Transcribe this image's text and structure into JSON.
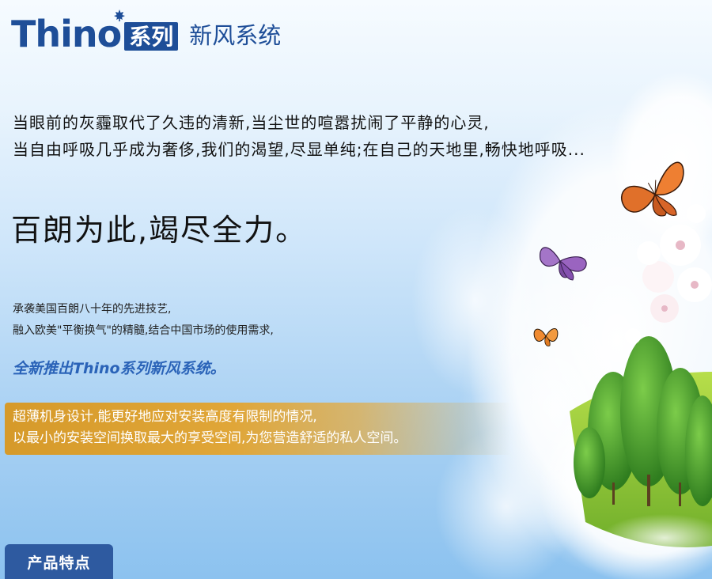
{
  "brand": {
    "name": "Thino",
    "badge": "系列",
    "subtitle": "新风系统"
  },
  "intro": {
    "line1": "当眼前的灰霾取代了久违的清新,当尘世的喧嚣扰闹了平静的心灵,",
    "line2": "当自由呼吸几乎成为奢侈,我们的渴望,尽显单纯;在自己的天地里,畅快地呼吸..."
  },
  "slogan": "百朗为此,竭尽全力。",
  "description": {
    "line1": "承袭美国百朗八十年的先进技艺,",
    "line2": "融入欧美\"平衡换气\"的精髓,结合中国市场的使用需求,"
  },
  "launch": "全新推出Thino系列新风系统。",
  "feature": {
    "line1": "超薄机身设计,能更好地应对安装高度有限制的情况,",
    "line2": "以最小的安装空间换取最大的享受空间,为您营造舒适的私人空间。"
  },
  "tab": {
    "label": "产品特点"
  },
  "colors": {
    "brand_blue": "#1e4e98",
    "launch_blue": "#2a63b8",
    "feature_gold": "#d69a2a",
    "tab_blue": "#2e5aa0"
  },
  "icons": [
    "maple-leaf-icon"
  ]
}
